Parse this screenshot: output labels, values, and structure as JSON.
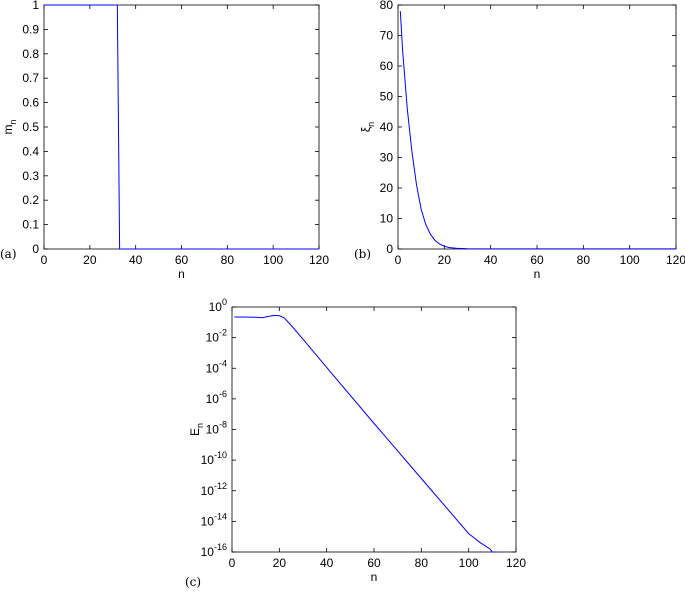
{
  "chart_data": [
    {
      "panel_label": "(a)",
      "type": "line",
      "xlabel": "n",
      "ylabel_main": "m",
      "ylabel_sub": "n",
      "xlim": [
        0,
        120
      ],
      "ylim": [
        0,
        1
      ],
      "xticks": [
        0,
        20,
        40,
        60,
        80,
        100,
        120
      ],
      "yticks": [
        0,
        0.1,
        0.2,
        0.3,
        0.4,
        0.5,
        0.6,
        0.7,
        0.8,
        0.9,
        1
      ],
      "xtick_labels": [
        "0",
        "20",
        "40",
        "60",
        "80",
        "100",
        "120"
      ],
      "ytick_labels": [
        "0",
        "0.1",
        "0.2",
        "0.3",
        "0.4",
        "0.5",
        "0.6",
        "0.7",
        "0.8",
        "0.9",
        "1"
      ],
      "line_color": "#0000ff",
      "series": [
        {
          "x": [
            0,
            32,
            33,
            120
          ],
          "y": [
            1,
            1,
            0,
            0
          ]
        }
      ]
    },
    {
      "panel_label": "(b)",
      "type": "line",
      "xlabel": "n",
      "ylabel_main": "ξ",
      "ylabel_sub": "n",
      "xlim": [
        0,
        120
      ],
      "ylim": [
        0,
        80
      ],
      "xticks": [
        0,
        20,
        40,
        60,
        80,
        100,
        120
      ],
      "yticks": [
        0,
        10,
        20,
        30,
        40,
        50,
        60,
        70,
        80
      ],
      "xtick_labels": [
        "0",
        "20",
        "40",
        "60",
        "80",
        "100",
        "120"
      ],
      "ytick_labels": [
        "0",
        "10",
        "20",
        "30",
        "40",
        "50",
        "60",
        "70",
        "80"
      ],
      "line_color": "#0000ff",
      "series": [
        {
          "x": [
            1,
            2,
            4,
            6,
            8,
            10,
            12,
            14,
            16,
            18,
            20,
            22,
            25,
            30,
            40,
            60,
            80,
            100,
            120
          ],
          "y": [
            78,
            65,
            46,
            32,
            21,
            13,
            8,
            4.8,
            2.8,
            1.6,
            0.9,
            0.5,
            0.25,
            0.1,
            0.05,
            0.04,
            0.04,
            0.04,
            0.04
          ]
        }
      ]
    },
    {
      "panel_label": "(c)",
      "type": "line",
      "scale_y": "log",
      "xlabel": "n",
      "ylabel_main": "E",
      "ylabel_sub": "n",
      "xlim": [
        0,
        120
      ],
      "ylim_exp": [
        -16,
        0
      ],
      "xticks": [
        0,
        20,
        40,
        60,
        80,
        100,
        120
      ],
      "xtick_labels": [
        "0",
        "20",
        "40",
        "60",
        "80",
        "100",
        "120"
      ],
      "ytick_exps": [
        0,
        -2,
        -4,
        -6,
        -8,
        -10,
        -12,
        -14,
        -16
      ],
      "ytick_labels": [
        {
          "base": "10",
          "exp": "0"
        },
        {
          "base": "10",
          "exp": "-2"
        },
        {
          "base": "10",
          "exp": "-4"
        },
        {
          "base": "10",
          "exp": "-6"
        },
        {
          "base": "10",
          "exp": "-8"
        },
        {
          "base": "10",
          "exp": "-10"
        },
        {
          "base": "10",
          "exp": "-12"
        },
        {
          "base": "10",
          "exp": "-14"
        },
        {
          "base": "10",
          "exp": "-16"
        }
      ],
      "line_color": "#0000ff",
      "series": [
        {
          "x": [
            1,
            5,
            10,
            13,
            15,
            18,
            20,
            22,
            25,
            30,
            40,
            60,
            80,
            100,
            105,
            109,
            110,
            112
          ],
          "log10_y": [
            -0.65,
            -0.65,
            -0.67,
            -0.7,
            -0.62,
            -0.55,
            -0.57,
            -0.7,
            -1.2,
            -2.1,
            -3.95,
            -7.6,
            -11.2,
            -14.8,
            -15.4,
            -15.8,
            -16.0,
            -16.0
          ]
        }
      ]
    }
  ]
}
